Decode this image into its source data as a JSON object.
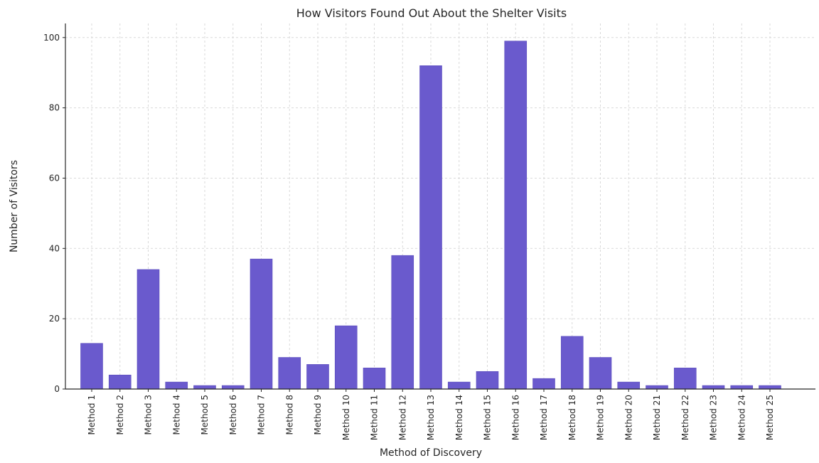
{
  "chart_data": {
    "type": "bar",
    "title": "How Visitors Found Out About the Shelter Visits",
    "xlabel": "Method of Discovery",
    "ylabel": "Number of Visitors",
    "categories": [
      "Method 1",
      "Method 2",
      "Method 3",
      "Method 4",
      "Method 5",
      "Method 6",
      "Method 7",
      "Method 8",
      "Method 9",
      "Method 10",
      "Method 11",
      "Method 12",
      "Method 13",
      "Method 14",
      "Method 15",
      "Method 16",
      "Method 17",
      "Method 18",
      "Method 19",
      "Method 20",
      "Method 21",
      "Method 22",
      "Method 23",
      "Method 24",
      "Method 25"
    ],
    "values": [
      13,
      4,
      34,
      2,
      1,
      1,
      37,
      9,
      7,
      18,
      6,
      38,
      92,
      2,
      5,
      99,
      3,
      15,
      9,
      2,
      1,
      6,
      1,
      1,
      1
    ],
    "ylim": [
      0,
      104
    ],
    "yticks": [
      0,
      20,
      40,
      60,
      80,
      100
    ],
    "grid": true,
    "bar_color": "#6a5acd",
    "bar_edge_color": "#5a4bbd"
  }
}
